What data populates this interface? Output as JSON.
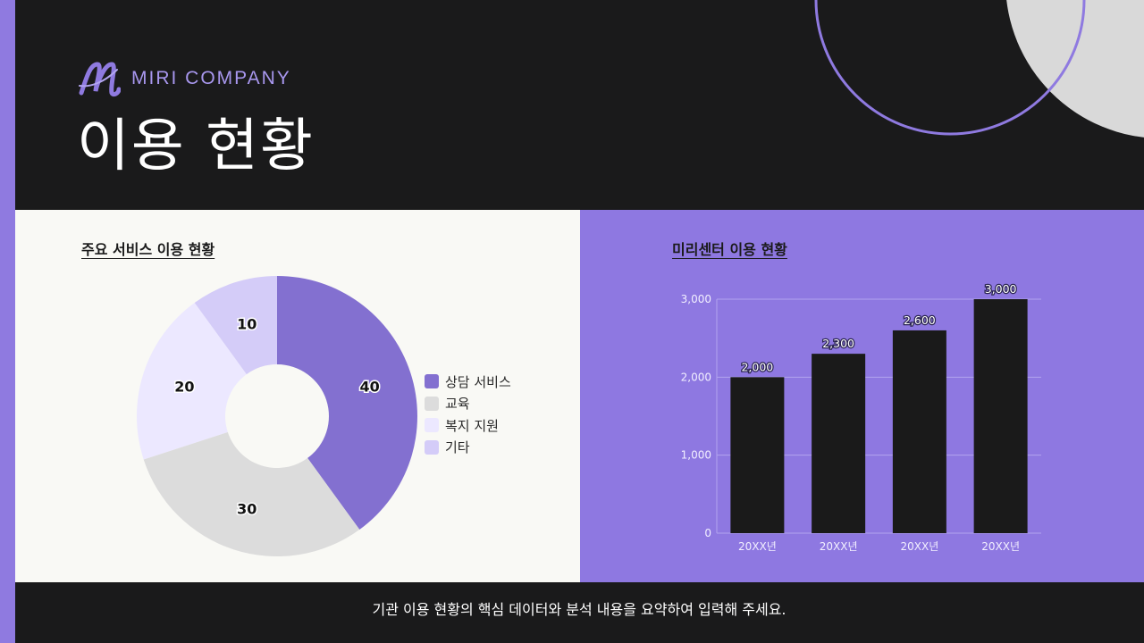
{
  "brand": {
    "name": "MIRI COMPANY",
    "logo_icon": "m-logo-icon"
  },
  "page": {
    "title": "이용 현황"
  },
  "colors": {
    "accent": "#8e78e1",
    "dark": "#1a1a1b",
    "light_panel": "#f9f9f5",
    "bar": "#1a1a1a",
    "pie": [
      "#8370d0",
      "#dcdcdc",
      "#ece8ff",
      "#d4ccf8"
    ]
  },
  "left_panel": {
    "title": "주요 서비스 이용 현황"
  },
  "right_panel": {
    "title": "미리센터 이용 현황"
  },
  "footer": {
    "text": "기관 이용 현황의 핵심 데이터와 분석 내용을 요약하여 입력해 주세요."
  },
  "chart_data": [
    {
      "type": "pie",
      "variant": "donut",
      "title": "주요 서비스 이용 현황",
      "categories": [
        "상담 서비스",
        "교육",
        "복지 지원",
        "기타"
      ],
      "values": [
        40,
        30,
        20,
        10
      ],
      "data_labels": [
        "40",
        "30",
        "20",
        "10"
      ],
      "legend": "right"
    },
    {
      "type": "bar",
      "title": "미리센터 이용 현황",
      "categories": [
        "20XX년",
        "20XX년",
        "20XX년",
        "20XX년"
      ],
      "values": [
        2000,
        2300,
        2600,
        3000
      ],
      "data_labels": [
        "2,000",
        "2,300",
        "2,600",
        "3,000"
      ],
      "ylim": [
        0,
        3000
      ],
      "yticks": [
        0,
        1000,
        2000,
        3000
      ],
      "ytick_labels": [
        "0",
        "1,000",
        "2,000",
        "3,000"
      ],
      "grid": true
    }
  ]
}
